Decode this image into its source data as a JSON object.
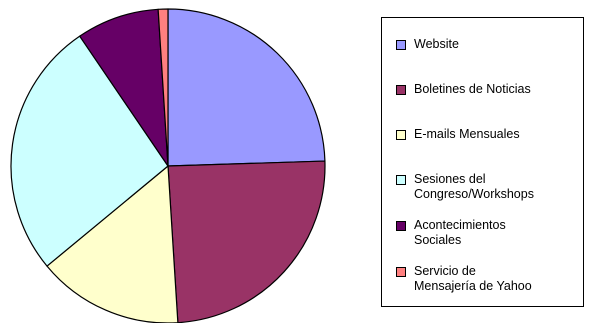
{
  "chart_data": {
    "type": "pie",
    "title": "",
    "series": [
      {
        "name": "Website",
        "value": 24.5,
        "color": "#9999ff"
      },
      {
        "name": "Boletines de Noticias",
        "value": 24.5,
        "color": "#993366"
      },
      {
        "name": "E-mails Mensuales",
        "value": 15.0,
        "color": "#ffffcc"
      },
      {
        "name": "Sesiones del\nCongreso/Workshops",
        "value": 26.5,
        "color": "#ccffff"
      },
      {
        "name": "Acontecimientos\nSociales",
        "value": 8.5,
        "color": "#660066"
      },
      {
        "name": "Servicio de\nMensajería de Yahoo",
        "value": 1.0,
        "color": "#ff8080"
      }
    ],
    "legend_position": "right",
    "start_angle": "top",
    "direction": "clockwise"
  }
}
